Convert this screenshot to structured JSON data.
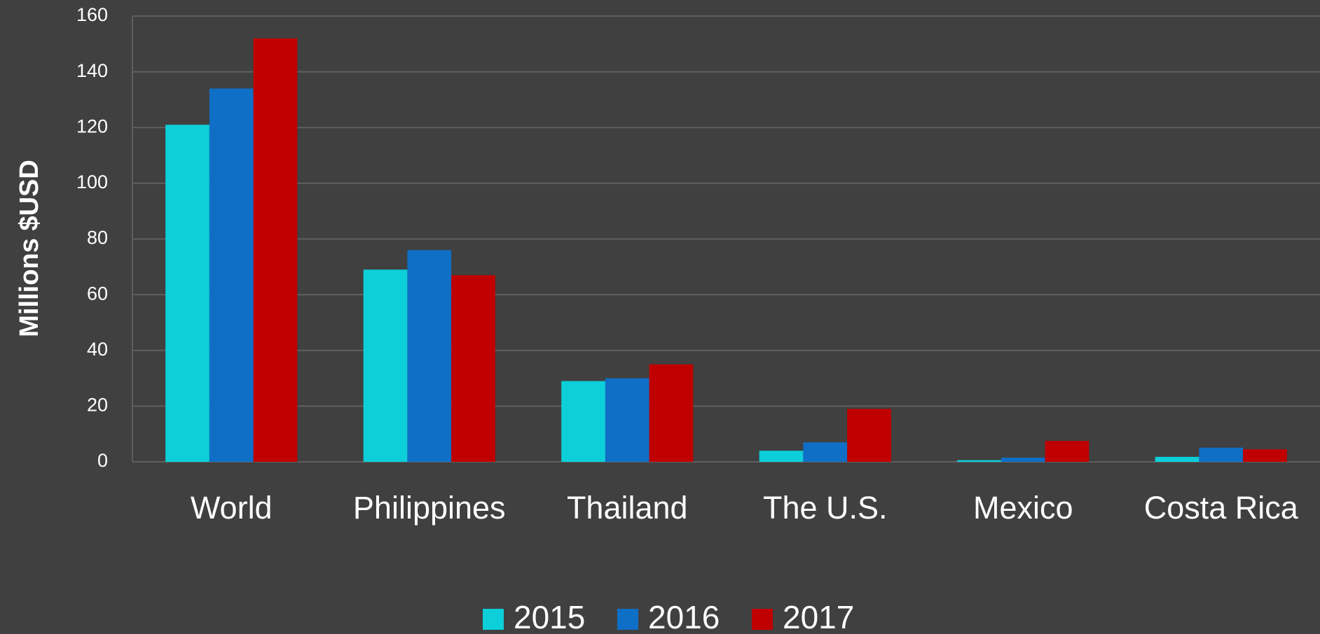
{
  "chart_data": {
    "type": "bar",
    "y_label": "Millions $USD",
    "categories": [
      "World",
      "Philippines",
      "Thailand",
      "The U.S.",
      "Mexico",
      "Costa Rica"
    ],
    "series": [
      {
        "name": "2015",
        "color": "#0ccfd9",
        "values": [
          121,
          69,
          29,
          4,
          0.6,
          1.8
        ]
      },
      {
        "name": "2016",
        "color": "#0f6fc6",
        "values": [
          134,
          76,
          30,
          7,
          1.5,
          5.1
        ]
      },
      {
        "name": "2017",
        "color": "#c00000",
        "values": [
          152,
          67,
          35,
          19,
          7.5,
          4.5
        ]
      }
    ],
    "ylim": [
      0,
      160
    ],
    "yticks": [
      0,
      20,
      40,
      60,
      80,
      100,
      120,
      140,
      160
    ],
    "grid": true,
    "legend": "bottom"
  }
}
